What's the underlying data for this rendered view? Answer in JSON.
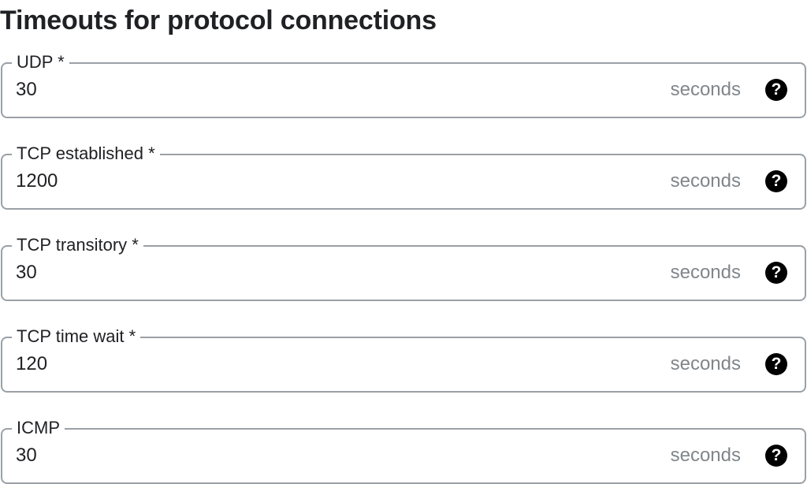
{
  "section": {
    "title": "Timeouts for protocol connections"
  },
  "icons": {
    "help": "help-circle-icon",
    "help_glyph": "?"
  },
  "fields": [
    {
      "label": "UDP *",
      "value": "30",
      "suffix": "seconds"
    },
    {
      "label": "TCP established *",
      "value": "1200",
      "suffix": "seconds"
    },
    {
      "label": "TCP transitory *",
      "value": "30",
      "suffix": "seconds"
    },
    {
      "label": "TCP time wait *",
      "value": "120",
      "suffix": "seconds"
    },
    {
      "label": "ICMP",
      "value": "30",
      "suffix": "seconds"
    }
  ]
}
